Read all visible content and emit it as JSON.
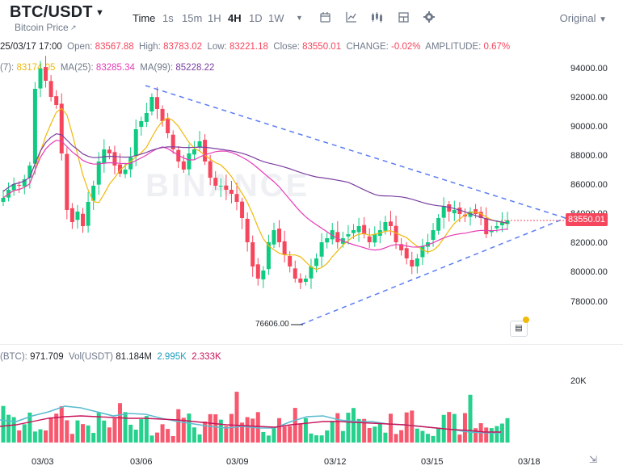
{
  "header": {
    "symbol": "BTC/USDT",
    "subtitle": "Bitcoin Price",
    "timeframes": [
      "Time",
      "1s",
      "15m",
      "1H",
      "4H",
      "1D",
      "1W"
    ],
    "active_timeframe": "4H",
    "view_mode": "Original"
  },
  "ohlc": {
    "datetime": "25/03/17 17:00",
    "open_label": "Open:",
    "open": "83567.88",
    "high_label": "High:",
    "high": "83783.02",
    "low_label": "Low:",
    "low": "83221.18",
    "close_label": "Close:",
    "close": "83550.01",
    "change_label": "CHANGE:",
    "change": "-0.02%",
    "amplitude_label": "AMPLITUDE:",
    "amplitude": "0.67%"
  },
  "ma": {
    "ma7_label": "(7):",
    "ma7": "83174.05",
    "ma25_label": "MA(25):",
    "ma25": "83285.34",
    "ma99_label": "MA(99):",
    "ma99": "85228.22"
  },
  "volume": {
    "vol_btc_label": "(BTC):",
    "vol_btc": "971.709",
    "vol_usdt_label": "Vol(USDT)",
    "vol_usdt": "81.184M",
    "ma1": "2.995K",
    "ma2": "2.333K"
  },
  "price_axis": [
    "94000.00",
    "92000.00",
    "90000.00",
    "88000.00",
    "86000.00",
    "84000.00",
    "82000.00",
    "80000.00",
    "78000.00"
  ],
  "volume_axis": [
    "20K"
  ],
  "time_axis": [
    "03/03",
    "03/06",
    "03/09",
    "03/12",
    "03/15",
    "03/18"
  ],
  "current_price": "83550.01",
  "low_marker": "76606.00",
  "watermark": "BINANCE",
  "colors": {
    "up": "#0ecb81",
    "down": "#f6465d",
    "ma7": "#f0b90b",
    "ma25": "#e63bb6",
    "ma99": "#7b3fa0",
    "trendline": "#5b7df5"
  }
}
